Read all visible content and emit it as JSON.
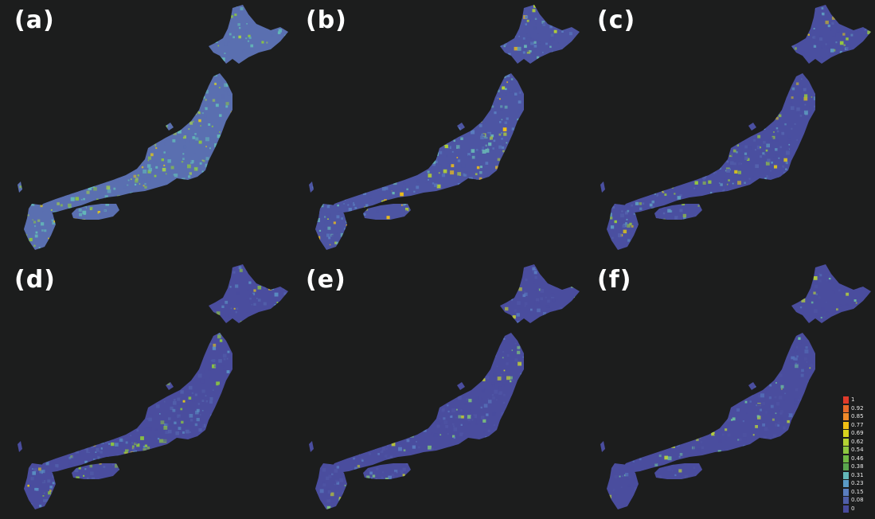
{
  "panels": [
    {
      "label": "(a)",
      "palette": [
        "#5a6fb0",
        "#63b8b8",
        "#8cc63f",
        "#a3d04a",
        "#e0c61c"
      ]
    },
    {
      "label": "(b)",
      "palette": [
        "#4d55a3",
        "#5a7ec0",
        "#68b5b5",
        "#b3d233",
        "#f2c014"
      ]
    },
    {
      "label": "(c)",
      "palette": [
        "#4a4fa0",
        "#5462ad",
        "#5e9bc0",
        "#96c93d",
        "#d9c21c"
      ]
    },
    {
      "label": "(d)",
      "palette": [
        "#4a4d9e",
        "#5260ab",
        "#5a8ec2",
        "#8cc63f",
        "#e0c61c"
      ]
    },
    {
      "label": "(e)",
      "palette": [
        "#4a4d9e",
        "#4f55a5",
        "#5a7abf",
        "#7dc47a",
        "#c6d42b"
      ]
    },
    {
      "label": "(f)",
      "palette": [
        "#4a4d9e",
        "#4d52a2",
        "#5470b8",
        "#6cc0a0",
        "#b7d33a"
      ]
    }
  ],
  "legend": {
    "ticks": [
      "1",
      "0.92",
      "0.85",
      "0.77",
      "0.69",
      "0.62",
      "0.54",
      "0.46",
      "0.38",
      "0.31",
      "0.23",
      "0.15",
      "0.08",
      "0"
    ],
    "colors": [
      "#e03a2a",
      "#e8692a",
      "#f08a2a",
      "#f2c014",
      "#d7d31e",
      "#b3d233",
      "#8cc63f",
      "#6fb843",
      "#5aa64e",
      "#63b8b8",
      "#5a9bc7",
      "#5a7ec0",
      "#4f5ea8",
      "#474a9c"
    ]
  }
}
